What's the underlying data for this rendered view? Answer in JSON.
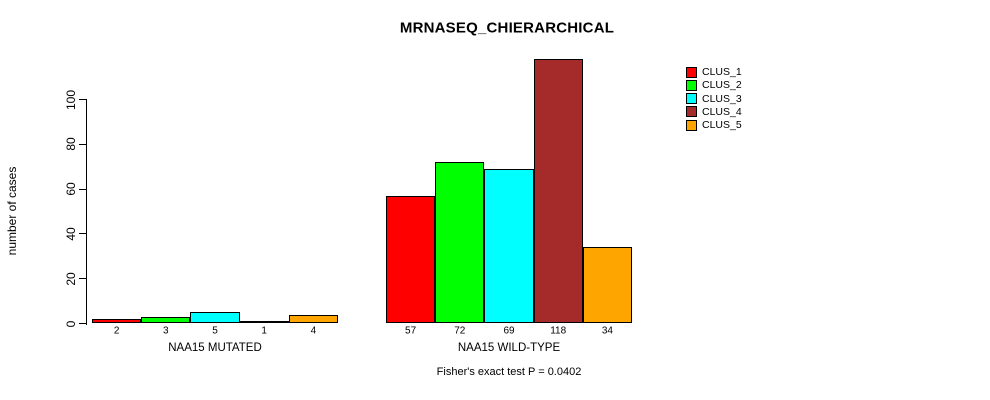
{
  "chart_data": {
    "type": "bar",
    "title": "MRNASEQ_CHIERARCHICAL",
    "ylabel": "number of cases",
    "ylim": [
      0,
      100
    ],
    "yticks": [
      0,
      20,
      40,
      60,
      80,
      100
    ],
    "grid": false,
    "legend_position": "right",
    "categories": [
      "NAA15 MUTATED",
      "NAA15 WILD-TYPE"
    ],
    "series": [
      {
        "name": "CLUS_1",
        "color": "#FF0000",
        "values": [
          2,
          57
        ]
      },
      {
        "name": "CLUS_2",
        "color": "#00FF00",
        "values": [
          3,
          72
        ]
      },
      {
        "name": "CLUS_3",
        "color": "#00FFFF",
        "values": [
          5,
          69
        ]
      },
      {
        "name": "CLUS_4",
        "color": "#A52A2A",
        "values": [
          1,
          118
        ]
      },
      {
        "name": "CLUS_5",
        "color": "#FFA500",
        "values": [
          4,
          34
        ]
      }
    ],
    "bar_value_labels_shown_below_bars": true,
    "annotation": "Fisher's exact test P = 0.0402"
  },
  "colors": {
    "background": "#FFFFFF",
    "axis": "#000000",
    "bar_border": "#000000",
    "text": "#000000"
  }
}
